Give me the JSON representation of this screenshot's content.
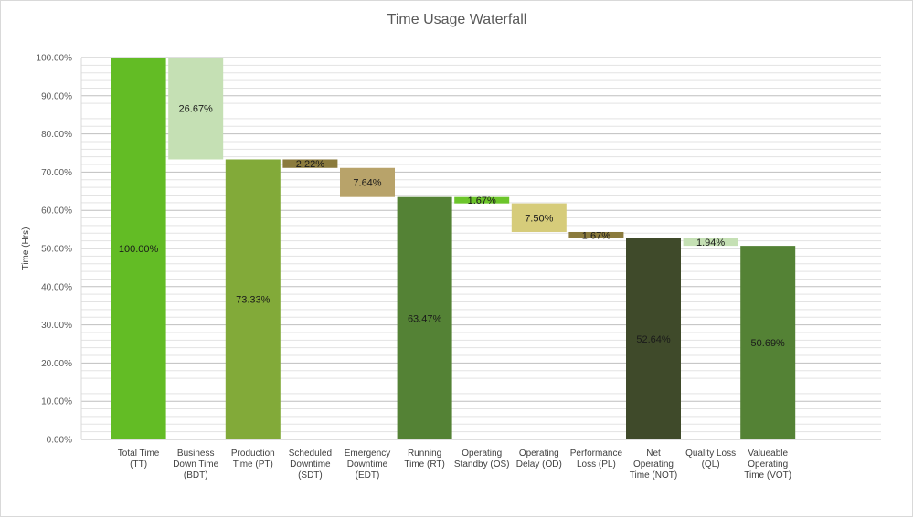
{
  "chart_data": {
    "type": "bar",
    "subtype": "waterfall",
    "title": "Time Usage Waterfall",
    "xlabel": "",
    "ylabel": "Time (Hrs)",
    "ylim": [
      0,
      100
    ],
    "y_major_step": 10,
    "y_minor_step": 2,
    "grid": true,
    "legend": "none",
    "yticks": [
      "0.00%",
      "10.00%",
      "20.00%",
      "30.00%",
      "40.00%",
      "50.00%",
      "60.00%",
      "70.00%",
      "80.00%",
      "90.00%",
      "100.00%"
    ],
    "categories": [
      [
        "Total Time",
        "(TT)"
      ],
      [
        "Business",
        "Down Time",
        "(BDT)"
      ],
      [
        "Production",
        "Time (PT)"
      ],
      [
        "Scheduled",
        "Downtime",
        "(SDT)"
      ],
      [
        "Emergency",
        "Downtime",
        "(EDT)"
      ],
      [
        "Running",
        "Time (RT)"
      ],
      [
        "Operating",
        "Standby (OS)"
      ],
      [
        "Operating",
        "Delay (OD)"
      ],
      [
        "Performance",
        "Loss (PL)"
      ],
      [
        "Net",
        "Operating",
        "Time (NOT)"
      ],
      [
        "Quality Loss",
        "(QL)"
      ],
      [
        "Valueable",
        "Operating",
        "Time (VOT)"
      ]
    ],
    "bars": [
      {
        "base": 0,
        "value": 100.0,
        "label": "100.00%",
        "color": "#63bc25"
      },
      {
        "base": 73.33,
        "value": 26.67,
        "label": "26.67%",
        "color": "#c5e0b4"
      },
      {
        "base": 0,
        "value": 73.33,
        "label": "73.33%",
        "color": "#82aa39"
      },
      {
        "base": 71.11,
        "value": 2.22,
        "label": "2.22%",
        "color": "#8b7b3d"
      },
      {
        "base": 63.47,
        "value": 7.64,
        "label": "7.64%",
        "color": "#b8a36a"
      },
      {
        "base": 0,
        "value": 63.47,
        "label": "63.47%",
        "color": "#548235"
      },
      {
        "base": 61.8,
        "value": 1.67,
        "label": "1.67%",
        "color": "#6cc52b"
      },
      {
        "base": 54.31,
        "value": 7.5,
        "label": "7.50%",
        "color": "#d6cc7a"
      },
      {
        "base": 52.64,
        "value": 1.67,
        "label": "1.67%",
        "color": "#8b7b3d"
      },
      {
        "base": 0,
        "value": 52.64,
        "label": "52.64%",
        "color": "#3f4a2a"
      },
      {
        "base": 50.69,
        "value": 1.94,
        "label": "1.94%",
        "color": "#c5e0b4"
      },
      {
        "base": 0,
        "value": 50.69,
        "label": "50.69%",
        "color": "#548235"
      }
    ]
  }
}
